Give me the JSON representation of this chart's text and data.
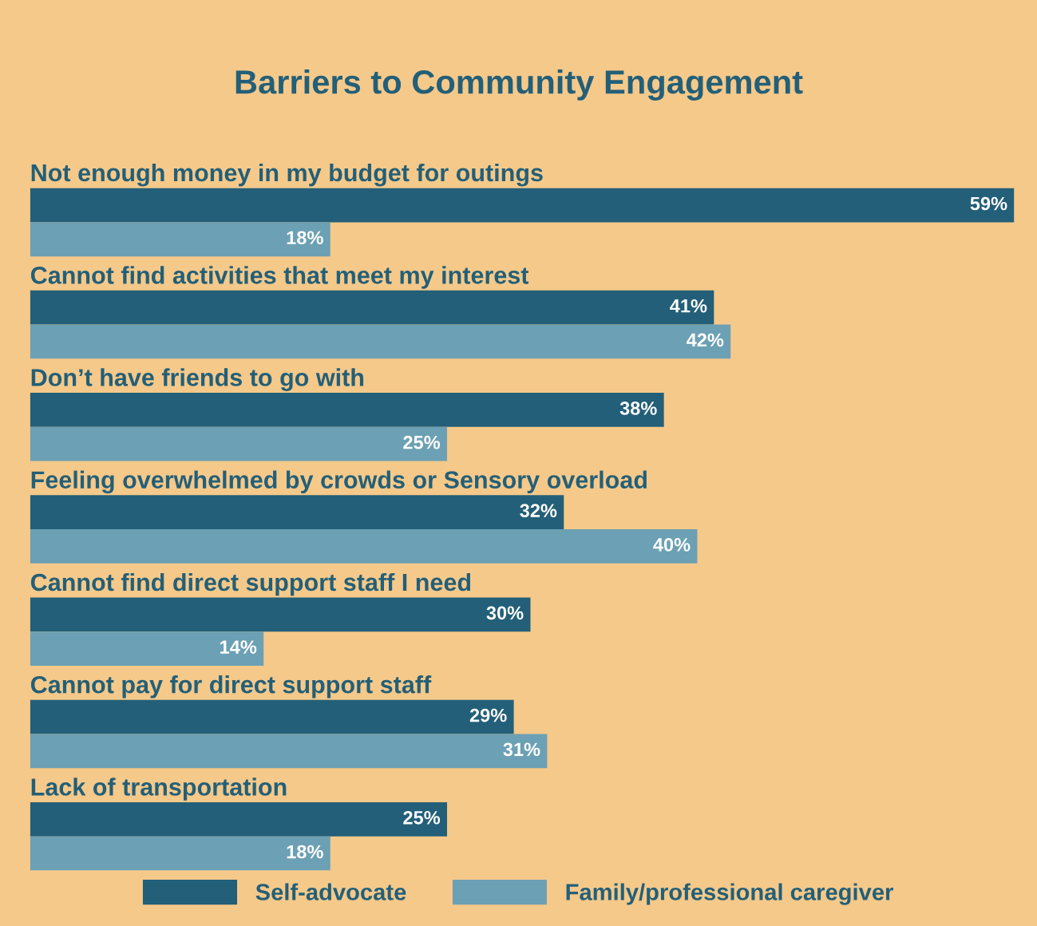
{
  "chart_data": {
    "type": "bar",
    "orientation": "horizontal",
    "title": "Barriers to Community Engagement",
    "categories": [
      "Not enough money in my budget for outings",
      "Cannot find activities that meet my interest",
      "Don’t have friends to go with",
      "Feeling overwhelmed by crowds or Sensory overload",
      "Cannot find direct support staff I need",
      "Cannot pay for direct support staff",
      "Lack of transportation"
    ],
    "series": [
      {
        "name": "Self-advocate",
        "color": "#235f78",
        "values": [
          59,
          41,
          38,
          32,
          30,
          29,
          25
        ],
        "value_labels": [
          "59%",
          "41%",
          "38%",
          "32%",
          "30%",
          "29%",
          "25%"
        ]
      },
      {
        "name": "Family/professional caregiver",
        "color": "#6ca0b4",
        "values": [
          18,
          42,
          25,
          40,
          14,
          31,
          18
        ],
        "value_labels": [
          "18%",
          "42%",
          "25%",
          "40%",
          "14%",
          "31%",
          "18%"
        ]
      }
    ],
    "xlim": [
      0,
      59
    ],
    "legend": "bottom"
  }
}
